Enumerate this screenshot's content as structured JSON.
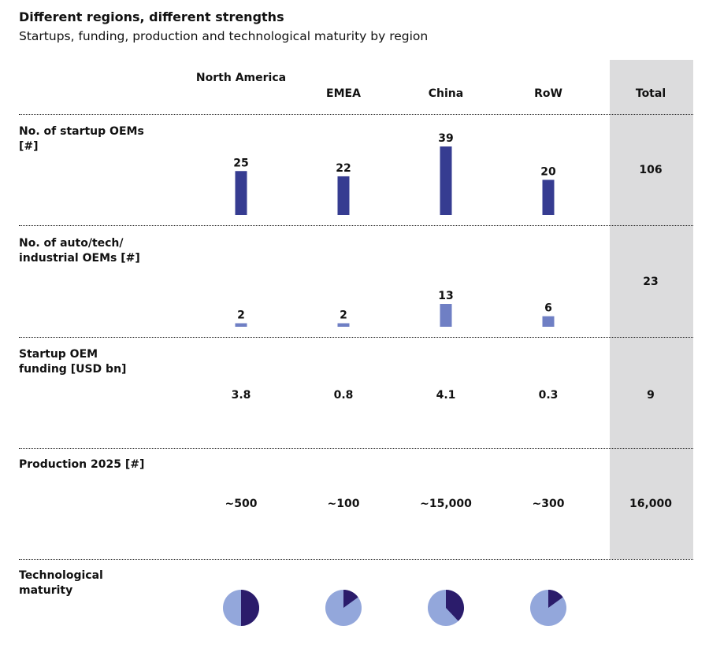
{
  "title": "Different regions, different strengths",
  "subtitle": "Startups, funding, production and technological maturity by region",
  "columns": [
    "North America",
    "EMEA",
    "China",
    "RoW"
  ],
  "total_label": "Total",
  "colors": {
    "startup_bar": "#363c91",
    "incumbent_bar": "#6f7fc4",
    "pie_dark": "#2b1c6b",
    "pie_light": "#93a7db",
    "total_bg": "#dcdcdd"
  },
  "rows": {
    "startup": {
      "label": "No. of startup OEMs [#]",
      "total": "106"
    },
    "incumbent": {
      "label": "No. of auto/tech/ industrial OEMs [#]",
      "total": "23"
    },
    "funding": {
      "label": "Startup OEM funding [USD bn]",
      "values": [
        "3.8",
        "0.8",
        "4.1",
        "0.3"
      ],
      "total": "9"
    },
    "production": {
      "label": "Production 2025 [#]",
      "values": [
        "~500",
        "~100",
        "~15,000",
        "~300"
      ],
      "total": "16,000"
    },
    "maturity": {
      "label": "Technological maturity"
    }
  },
  "chart_data": [
    {
      "type": "bar",
      "categories": [
        "North America",
        "EMEA",
        "China",
        "RoW"
      ],
      "values": [
        25,
        22,
        39,
        20
      ],
      "title": "No. of startup OEMs [#]"
    },
    {
      "type": "bar",
      "categories": [
        "North America",
        "EMEA",
        "China",
        "RoW"
      ],
      "values": [
        2,
        2,
        13,
        6
      ],
      "title": "No. of auto/tech/ industrial OEMs [#]"
    },
    {
      "type": "pie",
      "categories": [
        "North America",
        "EMEA",
        "China",
        "RoW"
      ],
      "values": [
        0.5,
        0.15,
        0.38,
        0.15
      ],
      "title": "Technological maturity"
    }
  ]
}
